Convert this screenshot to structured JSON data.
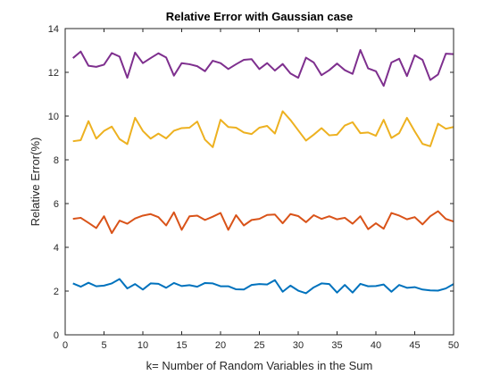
{
  "chart_data": {
    "type": "line",
    "title": "Relative Error with Gaussian case",
    "xlabel": "k= Number of Random Variables in the Sum",
    "ylabel": "Relative Error(%)",
    "xlim": [
      0,
      50
    ],
    "ylim": [
      0,
      14
    ],
    "xticks": [
      0,
      5,
      10,
      15,
      20,
      25,
      30,
      35,
      40,
      45,
      50
    ],
    "yticks": [
      0,
      2,
      4,
      6,
      8,
      10,
      12,
      14
    ],
    "grid": false,
    "x": [
      1,
      2,
      3,
      4,
      5,
      6,
      7,
      8,
      9,
      10,
      11,
      12,
      13,
      14,
      15,
      16,
      17,
      18,
      19,
      20,
      21,
      22,
      23,
      24,
      25,
      26,
      27,
      28,
      29,
      30,
      31,
      32,
      33,
      34,
      35,
      36,
      37,
      38,
      39,
      40,
      41,
      42,
      43,
      44,
      45,
      46,
      47,
      48,
      49,
      50
    ],
    "series": [
      {
        "color": "#0072BD",
        "values": [
          2.35,
          2.2,
          2.38,
          2.22,
          2.25,
          2.35,
          2.55,
          2.12,
          2.32,
          2.07,
          2.35,
          2.33,
          2.15,
          2.37,
          2.23,
          2.27,
          2.2,
          2.37,
          2.35,
          2.22,
          2.22,
          2.08,
          2.07,
          2.28,
          2.32,
          2.3,
          2.5,
          1.97,
          2.25,
          2.02,
          1.9,
          2.17,
          2.35,
          2.32,
          1.93,
          2.28,
          1.93,
          2.33,
          2.22,
          2.23,
          2.3,
          1.97,
          2.28,
          2.15,
          2.18,
          2.07,
          2.03,
          2.02,
          2.12,
          2.32
        ]
      },
      {
        "color": "#D95319",
        "values": [
          5.3,
          5.35,
          5.12,
          4.88,
          5.42,
          4.65,
          5.22,
          5.08,
          5.32,
          5.45,
          5.52,
          5.38,
          5.0,
          5.6,
          4.8,
          5.42,
          5.45,
          5.25,
          5.4,
          5.57,
          4.8,
          5.47,
          5.0,
          5.25,
          5.3,
          5.48,
          5.5,
          5.1,
          5.52,
          5.43,
          5.15,
          5.47,
          5.3,
          5.42,
          5.28,
          5.35,
          5.08,
          5.42,
          4.83,
          5.1,
          4.85,
          5.57,
          5.45,
          5.28,
          5.38,
          5.05,
          5.42,
          5.65,
          5.3,
          5.18
        ]
      },
      {
        "color": "#EDB120",
        "values": [
          8.85,
          8.9,
          9.77,
          8.97,
          9.32,
          9.52,
          8.95,
          8.72,
          9.92,
          9.32,
          8.97,
          9.2,
          8.98,
          9.33,
          9.45,
          9.47,
          9.75,
          8.92,
          8.58,
          9.83,
          9.5,
          9.47,
          9.25,
          9.18,
          9.47,
          9.55,
          9.2,
          10.22,
          9.82,
          9.35,
          8.88,
          9.15,
          9.45,
          9.12,
          9.15,
          9.57,
          9.72,
          9.22,
          9.25,
          9.1,
          9.83,
          9.0,
          9.22,
          9.92,
          9.3,
          8.73,
          8.62,
          9.65,
          9.42,
          9.5
        ]
      },
      {
        "color": "#7E2F8E",
        "values": [
          12.65,
          12.95,
          12.3,
          12.25,
          12.35,
          12.88,
          12.72,
          11.75,
          12.9,
          12.42,
          12.65,
          12.87,
          12.68,
          11.85,
          12.42,
          12.37,
          12.28,
          12.05,
          12.53,
          12.42,
          12.15,
          12.37,
          12.57,
          12.6,
          12.15,
          12.42,
          12.08,
          12.38,
          11.95,
          11.75,
          12.67,
          12.45,
          11.87,
          12.1,
          12.4,
          12.1,
          11.93,
          13.02,
          12.18,
          12.05,
          11.38,
          12.45,
          12.62,
          11.83,
          12.78,
          12.57,
          11.65,
          11.9,
          12.85,
          12.83
        ]
      }
    ]
  }
}
